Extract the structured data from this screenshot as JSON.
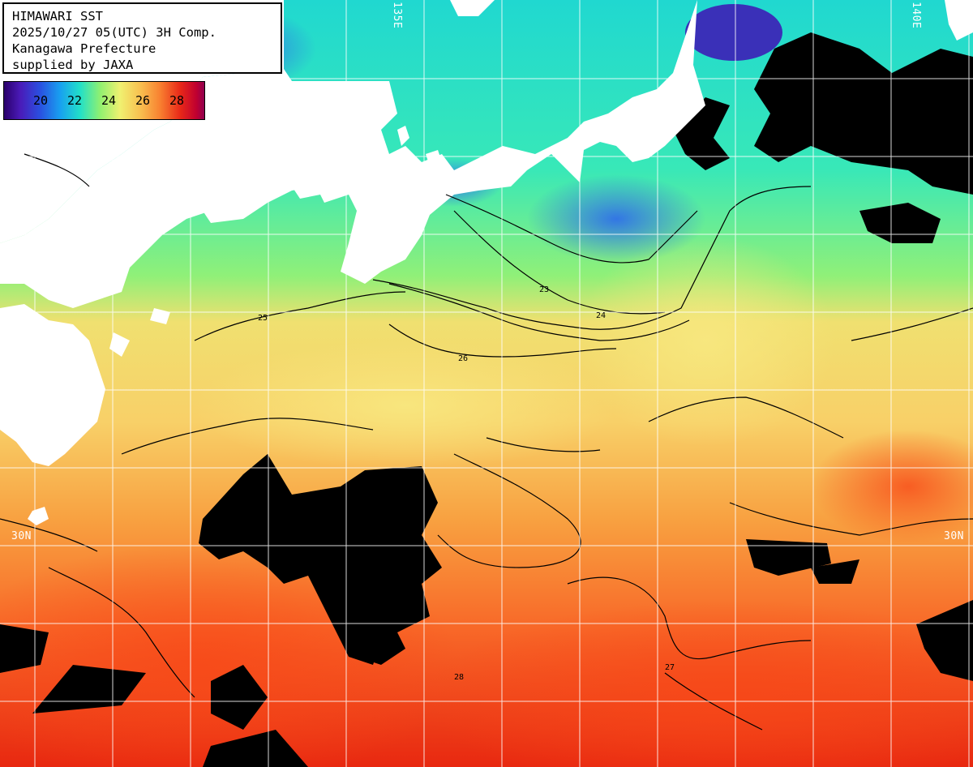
{
  "title": {
    "lines": [
      "HIMAWARI SST",
      "2025/10/27 05(UTC) 3H Comp.",
      "Kanagawa Prefecture",
      "supplied by JAXA"
    ]
  },
  "legend": {
    "ticks": [
      "20",
      "22",
      "24",
      "26",
      "28"
    ],
    "tick_values": [
      20,
      22,
      24,
      26,
      28
    ],
    "range": [
      18,
      30
    ],
    "colors": [
      "#2a006a",
      "#4a1ab8",
      "#2a50e0",
      "#18a0f0",
      "#22e0c8",
      "#90f070",
      "#f0f070",
      "#f8c050",
      "#f88030",
      "#e82818",
      "#c00030",
      "#900050"
    ]
  },
  "axis_labels": {
    "lat_left": "30N",
    "lat_right": "30N",
    "lon_top_left": "135E",
    "lon_top_right": "140E"
  },
  "contour_labels": [
    "23",
    "24",
    "25",
    "26",
    "27",
    "28"
  ],
  "colors": {
    "land": "#ffffff",
    "cloud": "#000000",
    "grid": "#ffffff",
    "contour": "#000000"
  }
}
